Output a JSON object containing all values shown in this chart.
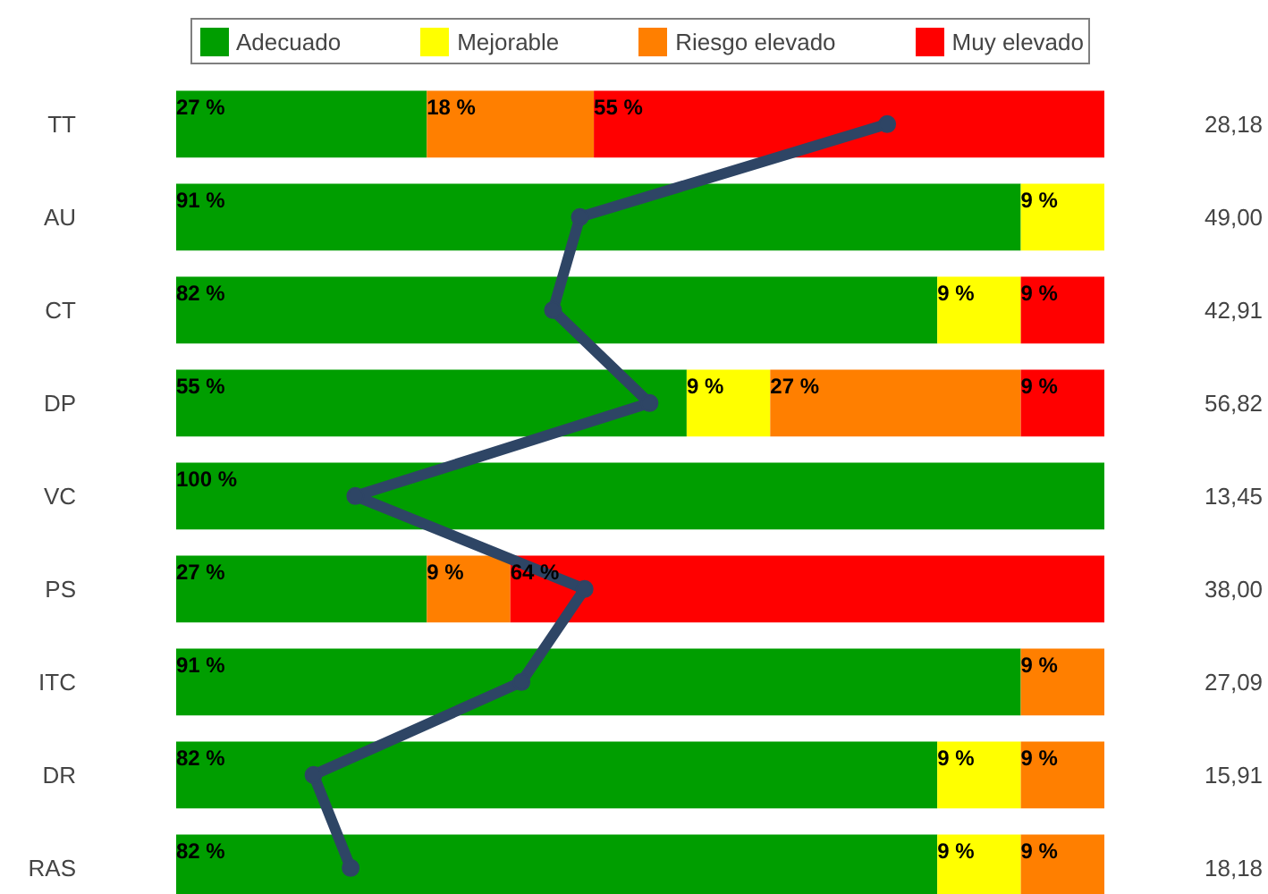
{
  "chart_data": {
    "type": "bar",
    "orientation": "horizontal",
    "stacked": true,
    "categories": [
      "TT",
      "AU",
      "CT",
      "DP",
      "VC",
      "PS",
      "ITC",
      "DR",
      "RAS"
    ],
    "xlim": [
      0,
      100
    ],
    "tick_labels": "y",
    "grid": false,
    "legend": "top",
    "marker": "circle",
    "line_style": "solid",
    "series": [
      {
        "name": "Adecuado",
        "color": "#009e00",
        "values": [
          27,
          91,
          82,
          55,
          100,
          27,
          91,
          82,
          82
        ],
        "value_labels": [
          "27 %",
          "91 %",
          "82 %",
          "55 %",
          "100 %",
          "27 %",
          "91 %",
          "82 %",
          "82 %"
        ]
      },
      {
        "name": "Mejorable",
        "color": "#ffff00",
        "values": [
          null,
          9,
          9,
          9,
          null,
          null,
          null,
          9,
          9
        ],
        "value_labels": [
          null,
          "9 %",
          "9 %",
          "9 %",
          null,
          null,
          null,
          "9 %",
          "9 %"
        ]
      },
      {
        "name": "Riesgo elevado",
        "color": "#ff7f00",
        "values": [
          18,
          null,
          null,
          27,
          null,
          9,
          9,
          9,
          9
        ],
        "value_labels": [
          "18 %",
          null,
          null,
          "27 %",
          null,
          "9 %",
          "9 %",
          "9 %",
          "9 %"
        ]
      },
      {
        "name": "Muy elevado",
        "color": "#ff0000",
        "values": [
          55,
          null,
          9,
          9,
          null,
          64,
          null,
          null,
          null
        ],
        "value_labels": [
          "55 %",
          null,
          "9 %",
          "9 %",
          null,
          "64 %",
          null,
          null,
          null
        ]
      },
      {
        "type": "line",
        "color": "#2e4565",
        "values": [
          76.6,
          43.5,
          40.6,
          51,
          19.3,
          44,
          37.2,
          14.8,
          18.8
        ]
      }
    ],
    "annotations": [
      "28,18",
      "49,00",
      "42,91",
      "56,82",
      "13,45",
      "38,00",
      "27,09",
      "15,91",
      "18,18"
    ]
  }
}
